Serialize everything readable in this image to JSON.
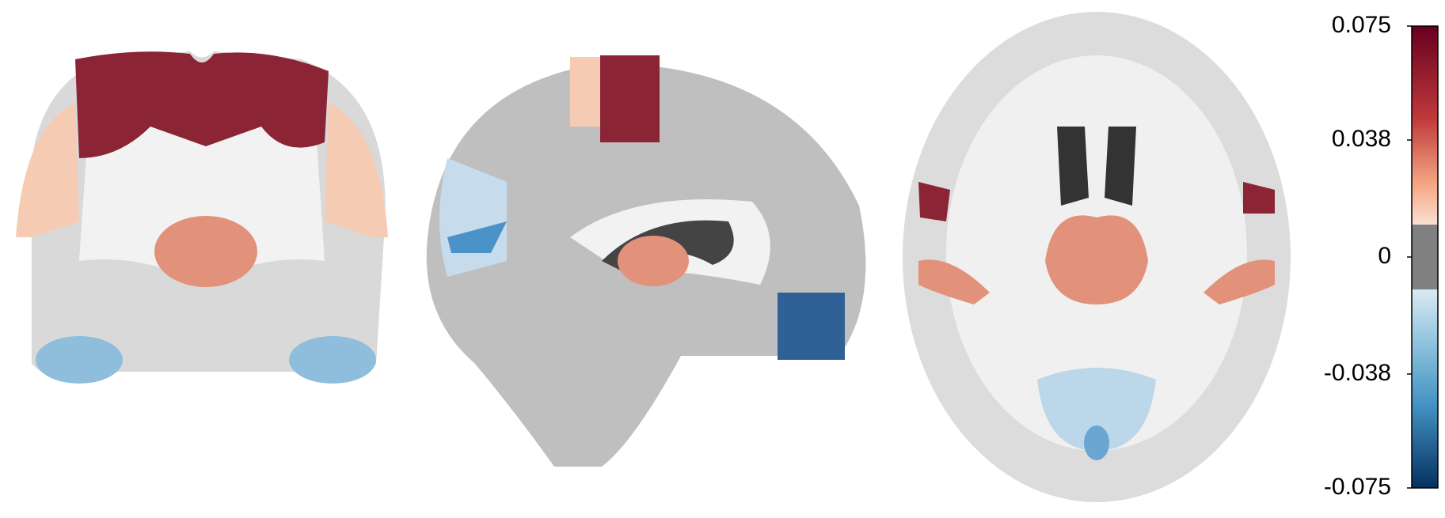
{
  "colorbar": {
    "vlim": [
      -0.075,
      0.075
    ],
    "ticks": [
      0.075,
      0.038,
      0,
      -0.038,
      -0.075
    ]
  }
}
